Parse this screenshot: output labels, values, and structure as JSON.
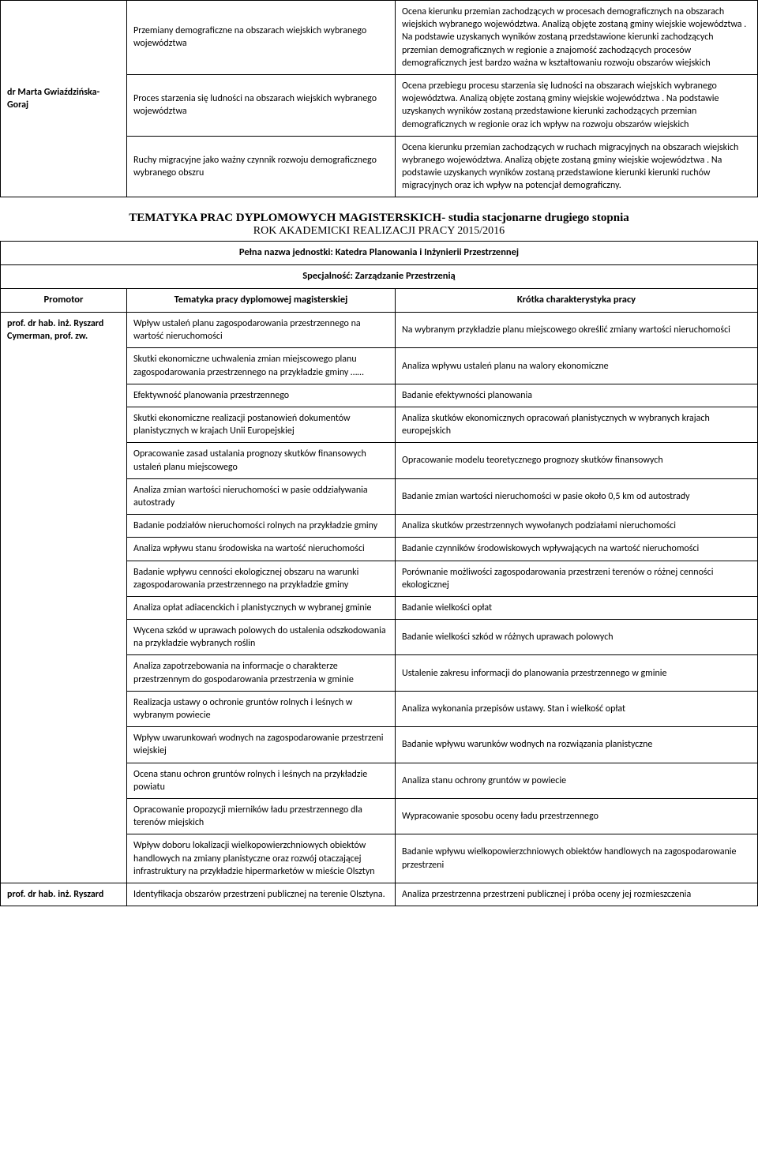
{
  "table1": {
    "advisor": "dr Marta Gwiaździńska-Goraj",
    "rows": [
      {
        "topic": "Przemiany demograficzne na obszarach wiejskich wybranego województwa",
        "desc": "Ocena kierunku przemian zachodzących w procesach demograficznych na obszarach wiejskich wybranego województwa. Analizą objęte zostaną gminy wiejskie województwa . Na podstawie uzyskanych wyników zostaną przedstawione kierunki zachodzących przemian demograficznych w regionie a znajomość zachodzących procesów demograficznych jest bardzo ważna w kształtowaniu rozwoju obszarów wiejskich"
      },
      {
        "topic": "Proces starzenia się ludności na obszarach wiejskich wybranego województwa",
        "desc": "Ocena przebiegu procesu starzenia się ludności na obszarach wiejskich wybranego województwa. Analizą objęte zostaną gminy wiejskie województwa . Na podstawie uzyskanych wyników zostaną przedstawione kierunki zachodzących przemian demograficznych w regionie oraz ich wpływ na rozwoju obszarów wiejskich"
      },
      {
        "topic": "Ruchy migracyjne jako ważny czynnik rozwoju demograficznego wybranego obszru",
        "desc": "Ocena kierunku przemian zachodzących w ruchach migracyjnych na obszarach wiejskich wybranego województwa. Analizą objęte zostaną gminy wiejskie województwa . Na podstawie uzyskanych wyników zostaną przedstawione kierunki kierunki ruchów migracyjnych oraz ich wpływ na potencjał demograficzny."
      }
    ]
  },
  "titles": {
    "main": "TEMATYKA PRAC DYPLOMOWYCH MAGISTERSKICH- studia stacjonarne drugiego stopnia",
    "sub": "ROK AKADEMICKI REALIZACJI PRACY 2015/2016",
    "unit": "Pełna nazwa jednostki: Katedra Planowania i Inżynierii Przestrzennej",
    "spec": "Specjalność: Zarządzanie Przestrzenią"
  },
  "headers": {
    "left": "Promotor",
    "mid": "Tematyka pracy dyplomowej magisterskiej",
    "right": "Krótka charakterystyka pracy"
  },
  "table2": {
    "advisor1": "prof. dr hab. inż. Ryszard Cymerman, prof. zw.",
    "advisor2": "prof. dr hab. inż. Ryszard",
    "rows": [
      {
        "topic": "Wpływ ustaleń planu zagospodarowania przestrzennego na wartość nieruchomości",
        "desc": "Na wybranym przykładzie planu miejscowego określić zmiany wartości nieruchomości"
      },
      {
        "topic": "Skutki ekonomiczne uchwalenia zmian miejscowego planu zagospodarowania przestrzennego na przykładzie gminy ……",
        "desc": "Analiza wpływu ustaleń planu na walory ekonomiczne"
      },
      {
        "topic": "Efektywność planowania przestrzennego",
        "desc": "Badanie efektywności planowania"
      },
      {
        "topic": "Skutki ekonomiczne realizacji postanowień dokumentów planistycznych w krajach Unii Europejskiej",
        "desc": "Analiza skutków ekonomicznych opracowań planistycznych w wybranych krajach europejskich"
      },
      {
        "topic": "Opracowanie zasad ustalania prognozy skutków finansowych ustaleń planu miejscowego",
        "desc": "Opracowanie modelu teoretycznego prognozy skutków finansowych"
      },
      {
        "topic": "Analiza zmian wartości nieruchomości w pasie oddziaływania autostrady",
        "desc": "Badanie zmian wartości nieruchomości w pasie około 0,5 km od autostrady"
      },
      {
        "topic": "Badanie podziałów nieruchomości rolnych na przykładzie gminy",
        "desc": "Analiza skutków przestrzennych wywołanych podziałami nieruchomości"
      },
      {
        "topic": "Analiza wpływu stanu środowiska na wartość nieruchomości",
        "desc": "Badanie czynników środowiskowych wpływających na wartość nieruchomości"
      },
      {
        "topic": "Badanie wpływu cenności ekologicznej obszaru na warunki zagospodarowania przestrzennego na przykładzie gminy",
        "desc": "Porównanie możliwości zagospodarowania przestrzeni terenów o różnej cenności ekologicznej"
      },
      {
        "topic": "Analiza opłat adiacenckich i planistycznych w wybranej gminie",
        "desc": "Badanie wielkości opłat"
      },
      {
        "topic": "Wycena szkód w uprawach polowych do ustalenia odszkodowania na przykładzie wybranych roślin",
        "desc": "Badanie wielkości szkód w różnych uprawach polowych"
      },
      {
        "topic": "Analiza zapotrzebowania na informacje o charakterze przestrzennym do gospodarowania przestrzenia w gminie",
        "desc": "Ustalenie zakresu informacji do planowania przestrzennego w gminie"
      },
      {
        "topic": "Realizacja ustawy o ochronie gruntów rolnych i leśnych w wybranym powiecie",
        "desc": "Analiza wykonania przepisów ustawy. Stan i wielkość opłat"
      },
      {
        "topic": "Wpływ uwarunkowań wodnych na zagospodarowanie przestrzeni wiejskiej",
        "desc": "Badanie wpływu warunków wodnych na rozwiązania planistyczne"
      },
      {
        "topic": "Ocena stanu ochron gruntów rolnych i leśnych na przykładzie powiatu",
        "desc": "Analiza stanu ochrony gruntów w powiecie"
      },
      {
        "topic": "Opracowanie propozycji mierników ładu przestrzennego dla terenów miejskich",
        "desc": "Wypracowanie sposobu oceny ładu przestrzennego"
      },
      {
        "topic": "Wpływ doboru lokalizacji wielkopowierzchniowych obiektów handlowych na zmiany planistyczne oraz rozwój otaczającej infrastruktury na przykładzie hipermarketów w mieście Olsztyn",
        "desc": "Badanie wpływu wielkopowierzchniowych obiektów handlowych na zagospodarowanie przestrzeni"
      },
      {
        "topic": "Identyfikacja obszarów przestrzeni publicznej na terenie Olsztyna.",
        "desc": "Analiza przestrzenna przestrzeni publicznej i próba oceny jej rozmieszczenia"
      }
    ]
  }
}
